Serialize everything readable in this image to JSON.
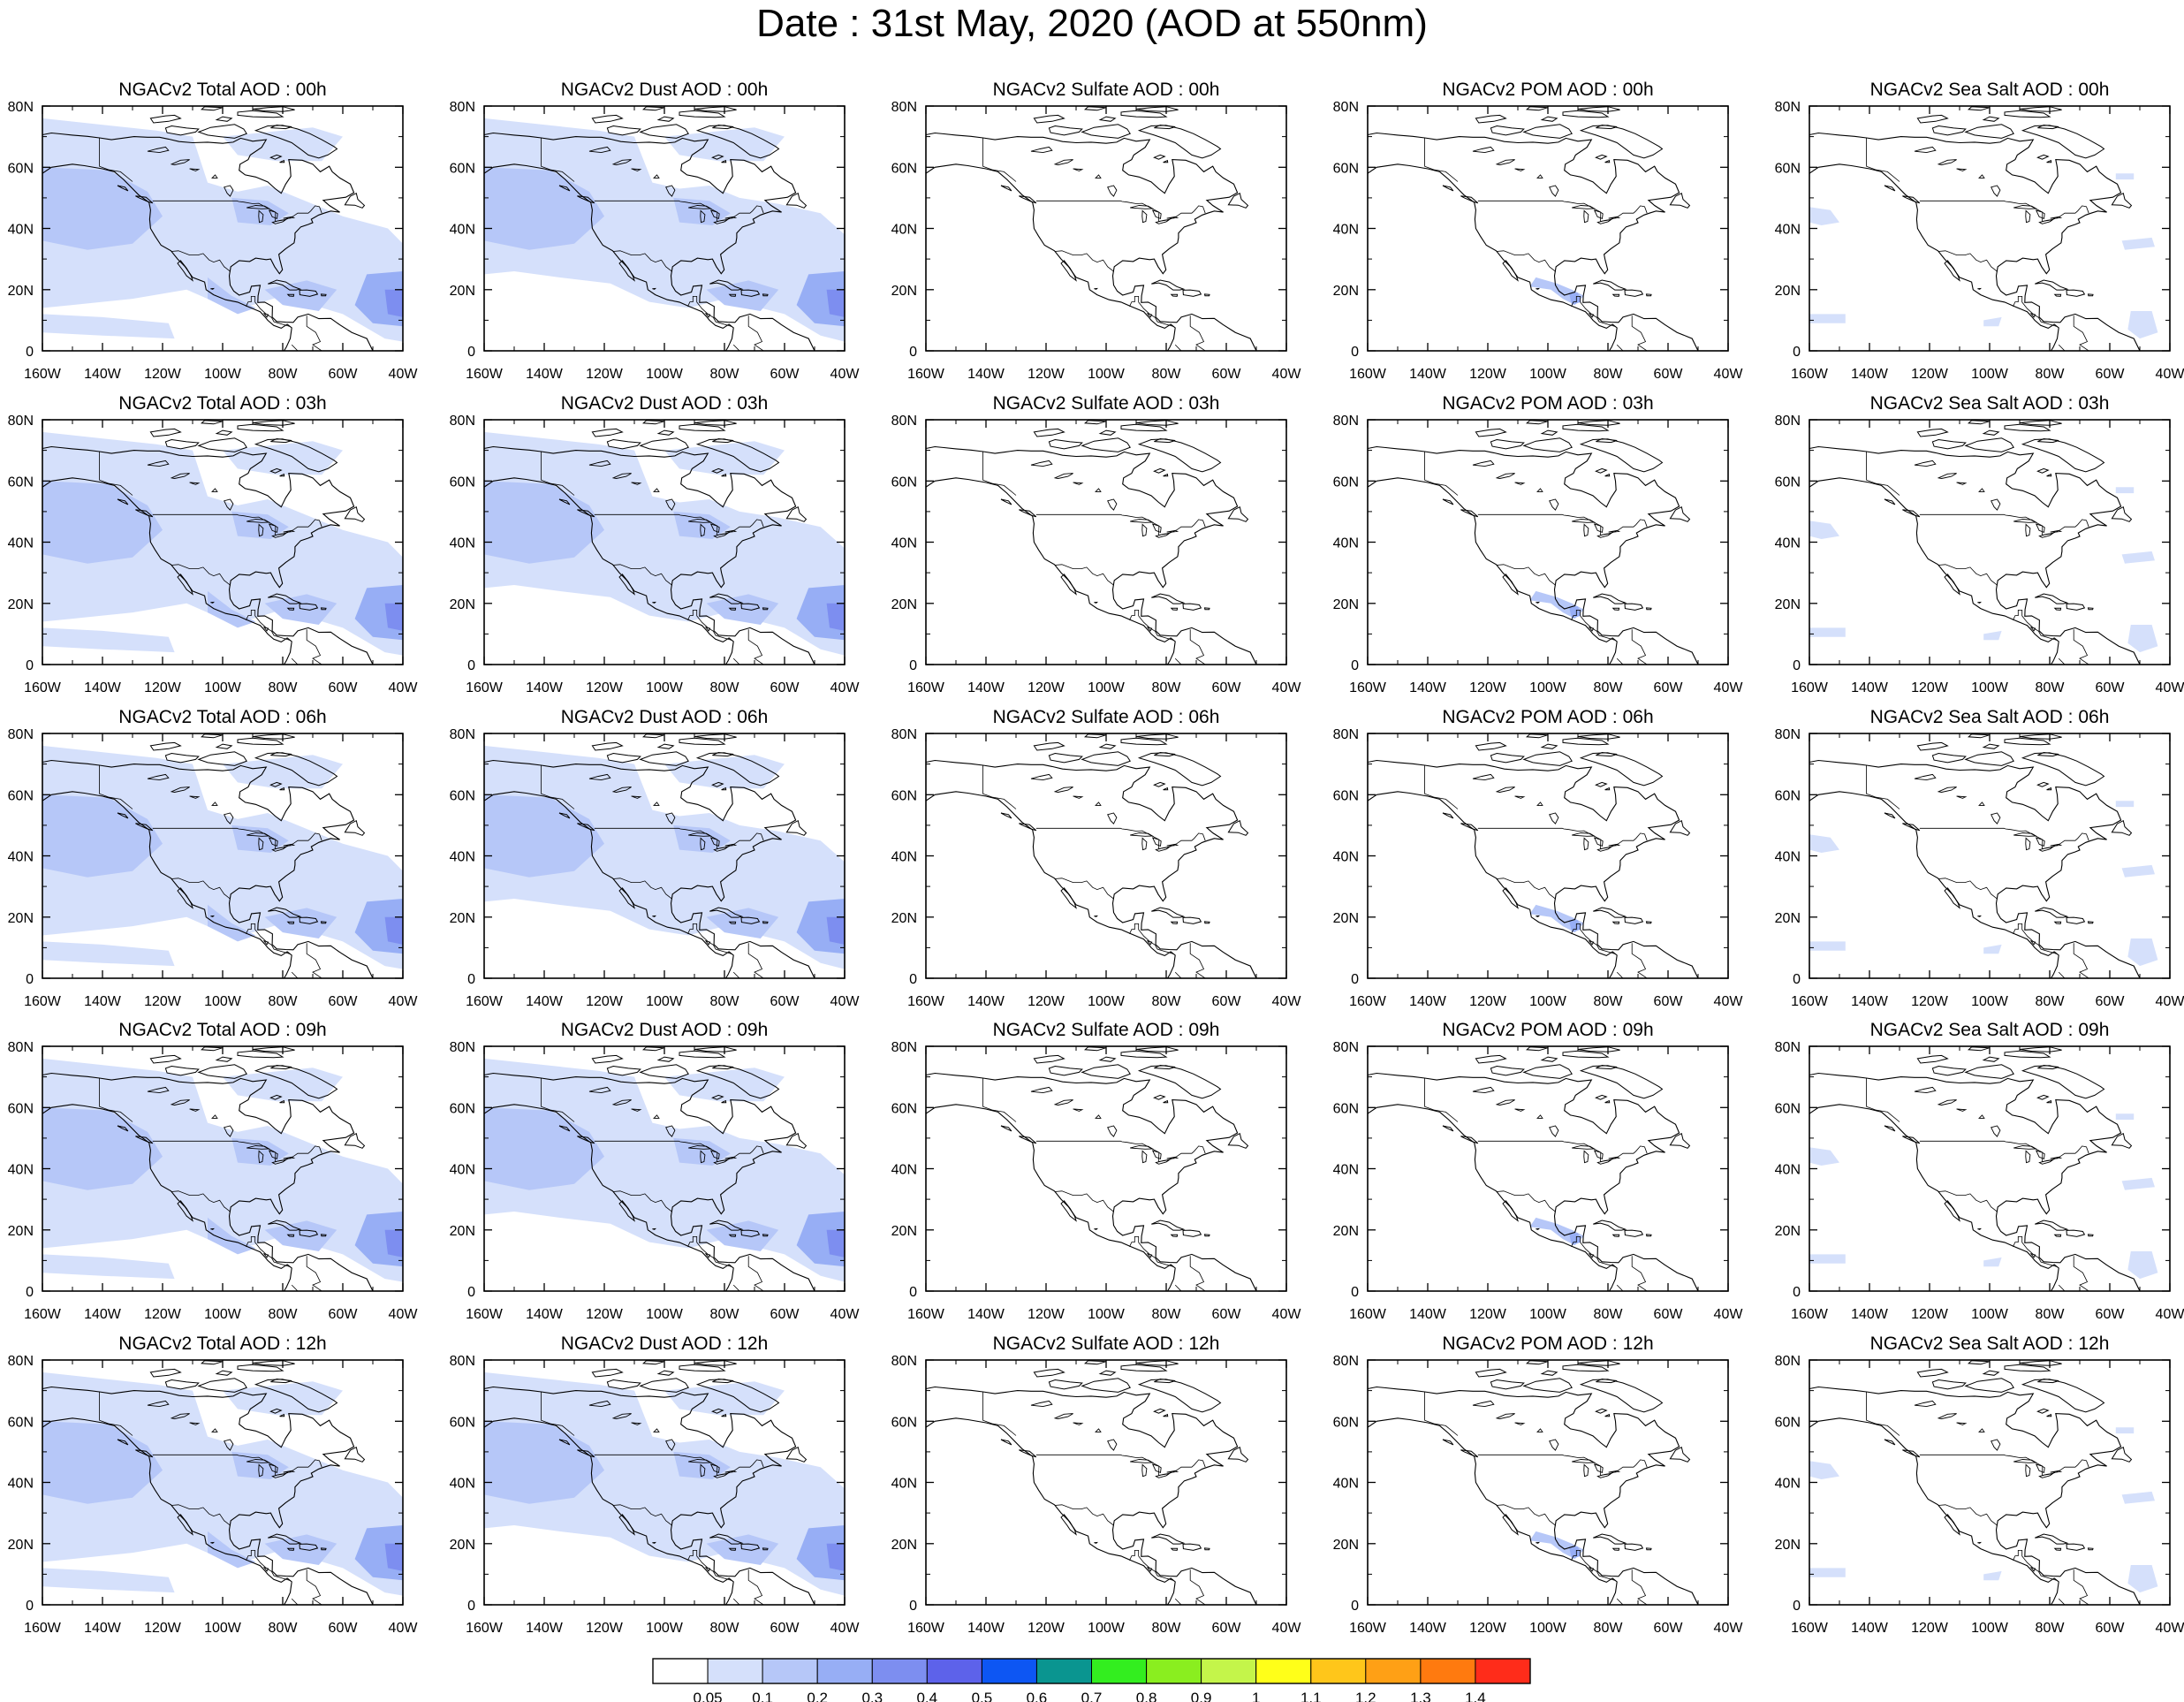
{
  "title": "Date : 31st May, 2020 (AOD at 550nm)",
  "species": [
    {
      "key": "total",
      "titles": [
        "NGACv2 Total AOD : 00h",
        "NGACv2 Total AOD : 03h",
        "NGACv2 Total AOD : 06h",
        "NGACv2 Total AOD : 09h",
        "NGACv2 Total AOD  : 12h"
      ]
    },
    {
      "key": "dust",
      "titles": [
        "NGACv2 Dust AOD : 00h",
        "NGACv2 Dust AOD : 03h",
        "NGACv2 Dust AOD : 06h",
        "NGACv2 Dust AOD : 09h",
        "NGACv2 Dust AOD : 12h"
      ]
    },
    {
      "key": "sulfate",
      "titles": [
        "NGACv2 Sulfate AOD : 00h",
        "NGACv2 Sulfate AOD : 03h",
        "NGACv2 Sulfate AOD : 06h",
        "NGACv2 Sulfate AOD : 09h",
        "NGACv2 Sulfate AOD : 12h"
      ]
    },
    {
      "key": "pom",
      "titles": [
        "NGACv2 POM AOD : 00h",
        "NGACv2 POM AOD : 03h",
        "NGACv2 POM AOD : 06h",
        "NGACv2 POM AOD : 09h",
        "NGACv2 POM  AOD : 12h"
      ]
    },
    {
      "key": "seasalt",
      "titles": [
        "NGACv2 Sea Salt AOD : 00h",
        "NGACv2 Sea Salt AOD : 03h",
        "NGACv2 Sea Salt AOD : 06h",
        "NGACv2 Sea Salt  AOD : 09h",
        "NGACv2 Sea Salt  AOD : 12h"
      ]
    }
  ],
  "lat_ticks": [
    "80N",
    "60N",
    "40N",
    "20N",
    "0"
  ],
  "lon_ticks": [
    "160W",
    "140W",
    "120W",
    "100W",
    "80W",
    "60W",
    "40W"
  ],
  "colorbar": {
    "levels": [
      "0.05",
      "0.1",
      "0.2",
      "0.3",
      "0.4",
      "0.5",
      "0.6",
      "0.7",
      "0.8",
      "0.9",
      "1",
      "1.1",
      "1.2",
      "1.3",
      "1.4"
    ],
    "colors": [
      "#ffffff",
      "#d5e0fb",
      "#b6c7f8",
      "#97aef5",
      "#7d8ef0",
      "#5d62ea",
      "#0d56f3",
      "#0a9590",
      "#33ee1f",
      "#8aee1f",
      "#c4f54a",
      "#ffff19",
      "#ffc61a",
      "#ffa015",
      "#ff7a0f",
      "#ff2c1a"
    ]
  },
  "colors": {
    "aod_light": "#d5e0fb",
    "aod_medium": "#b6c7f8",
    "aod_strong": "#97aef5",
    "aod_peak": "#7d8ef0",
    "coastline": "#000000"
  }
}
